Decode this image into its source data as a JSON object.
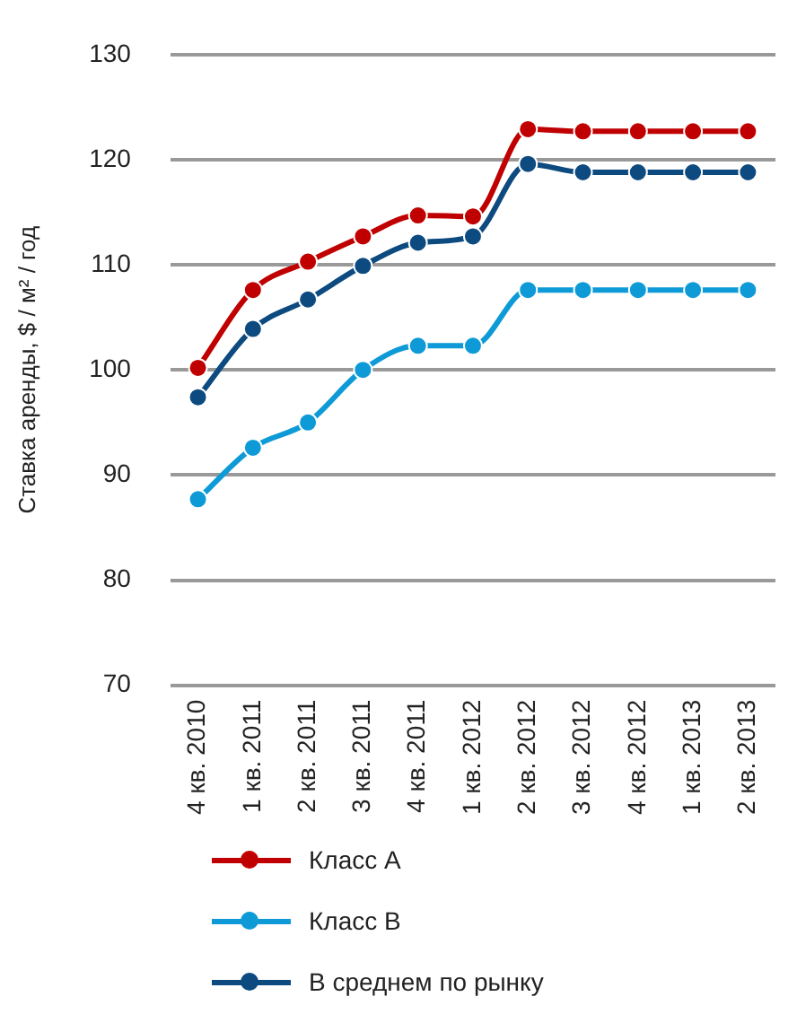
{
  "chart_data": {
    "type": "line",
    "ylabel": "Ставка аренды, $ / м² / год",
    "categories": [
      "4 кв. 2010",
      "1 кв. 2011",
      "2 кв. 2011",
      "3 кв. 2011",
      "4 кв. 2011",
      "1 кв. 2012",
      "2 кв. 2012",
      "3 кв. 2012",
      "4 кв. 2012",
      "1 кв. 2013",
      "2 кв. 2013"
    ],
    "series": [
      {
        "name": "Класс А",
        "color": "#c00000",
        "values": [
          100.2,
          107.6,
          110.3,
          112.7,
          114.7,
          114.6,
          122.9,
          122.7,
          122.7,
          122.7,
          122.7
        ]
      },
      {
        "name": "Класс В",
        "color": "#0e9ad6",
        "values": [
          87.7,
          92.6,
          95.0,
          100.0,
          102.3,
          102.3,
          107.6,
          107.6,
          107.6,
          107.6,
          107.6
        ]
      },
      {
        "name": "В среднем по рынку",
        "color": "#0d4a80",
        "values": [
          97.4,
          103.9,
          106.7,
          109.9,
          112.1,
          112.7,
          119.6,
          118.8,
          118.8,
          118.8,
          118.8
        ]
      }
    ],
    "ylim": [
      70,
      130
    ],
    "yticks": [
      70,
      80,
      90,
      100,
      110,
      120,
      130
    ],
    "grid": "y",
    "legend": "bottom",
    "marker": "circle",
    "line_style": "solid"
  }
}
